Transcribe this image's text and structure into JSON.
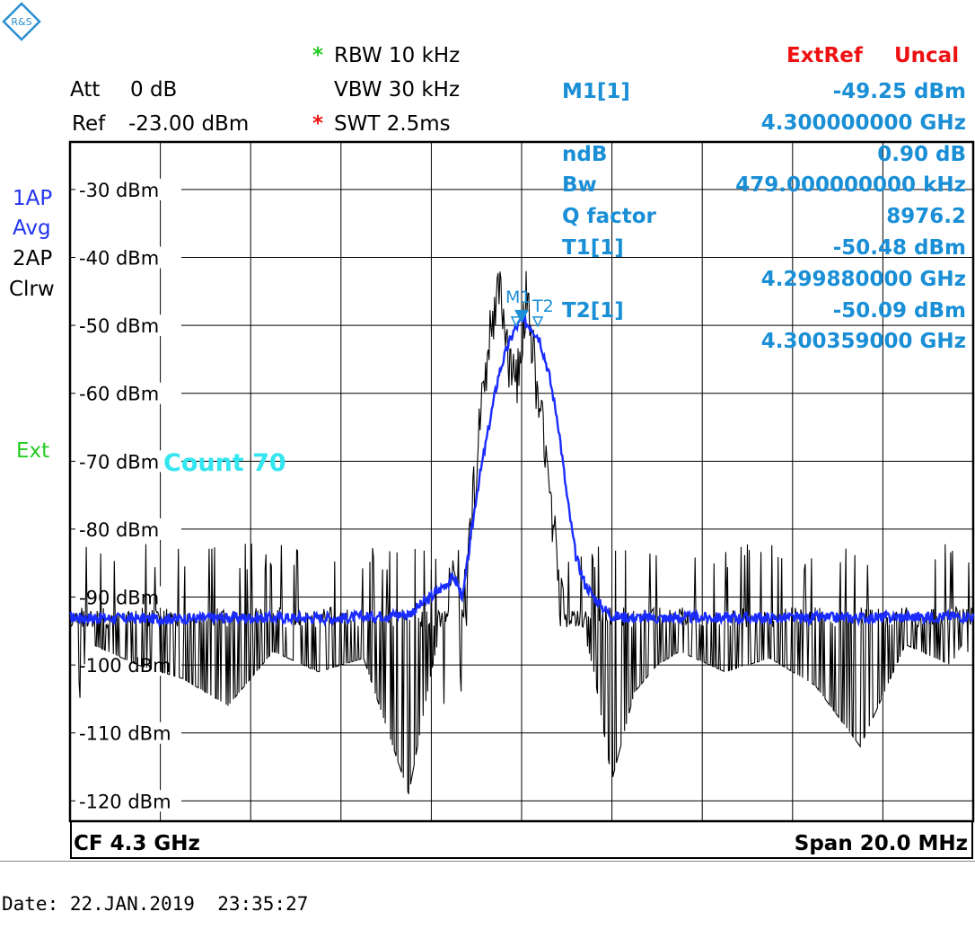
{
  "logo": {
    "icon": "rohde-schwarz-logo",
    "text": "R&S"
  },
  "header": {
    "att_label": "Att",
    "att_value": "0 dB",
    "ref_label": "Ref",
    "ref_value": "-23.00 dBm",
    "rbw_star": "*",
    "rbw": "RBW 10 kHz",
    "vbw": "VBW 30 kHz",
    "swt_star": "*",
    "swt": "SWT 2.5ms",
    "extref": "ExtRef",
    "uncal": "Uncal"
  },
  "marker_table": {
    "rows": [
      {
        "label": "M1[1]",
        "value": "-49.25 dBm"
      },
      {
        "label": "",
        "value": "4.300000000 GHz"
      },
      {
        "label": "ndB",
        "value": "0.90 dB"
      },
      {
        "label": "Bw",
        "value": "479.000000000 kHz"
      },
      {
        "label": "Q factor",
        "value": "8976.2"
      },
      {
        "label": "T1[1]",
        "value": "-50.48 dBm"
      },
      {
        "label": "",
        "value": "4.299880000 GHz"
      },
      {
        "label": "T2[1]",
        "value": "-50.09 dBm"
      },
      {
        "label": "",
        "value": "4.300359000 GHz"
      }
    ]
  },
  "side_labels": {
    "trace1_mode": "1AP",
    "trace1_det": "Avg",
    "trace2_mode": "2AP",
    "trace2_det": "Clrw",
    "ext": "Ext"
  },
  "count_label": "Count 70",
  "markers": {
    "m1": "M1",
    "t1": "T1",
    "t2": "T2"
  },
  "footer": {
    "cf": "CF 4.3 GHz",
    "span": "Span 20.0 MHz",
    "date": "Date: 22.JAN.2019  23:35:27"
  },
  "colors": {
    "blue_trace": "#1a2cff",
    "marker_text": "#1a8fd6",
    "side_blue": "#2233ee",
    "red": "#ee1111",
    "green": "#22cc22",
    "cyan": "#33e6f0"
  },
  "chart_data": {
    "type": "line",
    "x_unit": "GHz",
    "center_frequency_ghz": 4.3,
    "span_mhz": 20.0,
    "xlim": [
      4.29,
      4.31
    ],
    "ylim": [
      -123,
      -23
    ],
    "y_ticks": [
      {
        "value": -30,
        "label": "-30 dBm"
      },
      {
        "value": -40,
        "label": "-40 dBm"
      },
      {
        "value": -50,
        "label": "-50 dBm"
      },
      {
        "value": -60,
        "label": "-60 dBm"
      },
      {
        "value": -70,
        "label": "-70 dBm"
      },
      {
        "value": -80,
        "label": "-80 dBm"
      },
      {
        "value": -90,
        "label": "-90 dBm"
      },
      {
        "value": -100,
        "label": "-100 dBm"
      },
      {
        "value": -110,
        "label": "-110 dBm"
      },
      {
        "value": -120,
        "label": "-120 dBm"
      }
    ],
    "x_divisions": 10,
    "grid": true,
    "series": [
      {
        "name": "1AP Avg",
        "color": "#1a2cff",
        "x": [
          4.29,
          4.292,
          4.294,
          4.296,
          4.2975,
          4.298,
          4.2985,
          4.2987,
          4.299,
          4.2993,
          4.2995,
          4.2997,
          4.29985,
          4.3,
          4.3002,
          4.3004,
          4.3006,
          4.3008,
          4.301,
          4.3012,
          4.3014,
          4.3016,
          4.3018,
          4.302,
          4.3025,
          4.303,
          4.304,
          4.306,
          4.308,
          4.31
        ],
        "y": [
          -93.0,
          -93.2,
          -93.0,
          -93.1,
          -92.5,
          -90.0,
          -87.0,
          -90.0,
          -75.0,
          -64.0,
          -57.0,
          -53.0,
          -50.5,
          -49.3,
          -50.1,
          -52.0,
          -57.0,
          -64.0,
          -75.0,
          -84.0,
          -88.0,
          -90.0,
          -91.5,
          -92.8,
          -93.0,
          -93.1,
          -93.0,
          -93.1,
          -93.0,
          -92.8
        ]
      },
      {
        "name": "2AP Clrw",
        "color": "#000000",
        "x": [
          4.29,
          4.2905,
          4.2915,
          4.2925,
          4.2935,
          4.2945,
          4.2955,
          4.2965,
          4.2975,
          4.298,
          4.2985,
          4.2987,
          4.299,
          4.2993,
          4.2995,
          4.2997,
          4.2999,
          4.3001,
          4.3003,
          4.3005,
          4.3007,
          4.3009,
          4.3011,
          4.3013,
          4.3016,
          4.302,
          4.3025,
          4.303,
          4.3035,
          4.3045,
          4.3055,
          4.3065,
          4.3075,
          4.3085,
          4.3095,
          4.31
        ],
        "y": [
          -92.0,
          -97.0,
          -100.0,
          -102.0,
          -106.0,
          -98.0,
          -101.0,
          -99.0,
          -119.0,
          -101.0,
          -86.0,
          -92.0,
          -70.0,
          -52.0,
          -45.0,
          -55.0,
          -58.0,
          -46.0,
          -57.0,
          -66.0,
          -80.0,
          -88.0,
          -96.0,
          -93.0,
          -101.0,
          -117.0,
          -104.0,
          -100.0,
          -98.0,
          -101.0,
          -99.0,
          -103.0,
          -112.0,
          -97.0,
          -100.0,
          -94.0
        ]
      }
    ]
  }
}
